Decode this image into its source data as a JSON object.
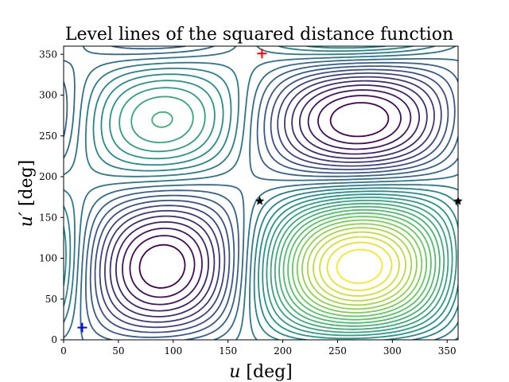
{
  "chart_data": {
    "type": "contour",
    "title": "Level lines of the squared distance function",
    "xlabel": "u [deg]",
    "ylabel": "u′ [deg]",
    "xlabel_math": "u",
    "xlabel_unit": " [deg]",
    "ylabel_math": "u′",
    "ylabel_unit": " [deg]",
    "xlim": [
      0,
      360
    ],
    "ylim": [
      0,
      360
    ],
    "xticks": [
      0,
      50,
      100,
      150,
      200,
      250,
      300,
      350
    ],
    "yticks": [
      0,
      50,
      100,
      150,
      200,
      250,
      300,
      350
    ],
    "colormap": [
      "#440154",
      "#3b528b",
      "#21918c",
      "#5ec962",
      "#fde725"
    ],
    "level_count": 30,
    "markers": [
      {
        "symbol": "plus",
        "x": 181,
        "y": 351,
        "color": "#ff0000"
      },
      {
        "symbol": "plus",
        "x": 17,
        "y": 15,
        "color": "#0000ff"
      },
      {
        "symbol": "star",
        "x": 179,
        "y": 170,
        "color": "#000000"
      },
      {
        "symbol": "star",
        "x": 360,
        "y": 170,
        "color": "#000000"
      }
    ]
  }
}
